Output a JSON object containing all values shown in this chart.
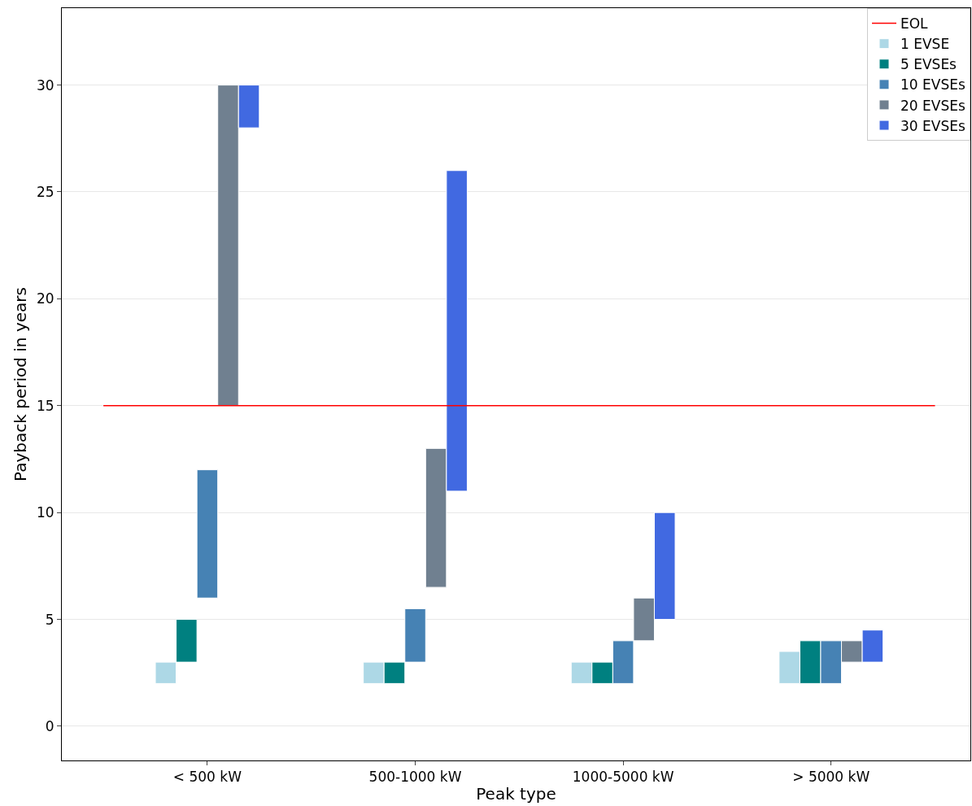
{
  "chart_data": {
    "type": "bar",
    "xlabel": "Peak type",
    "ylabel": "Payback period in years",
    "categories": [
      "< 500 kW",
      "500-1000 kW",
      "1000-5000 kW",
      "> 5000 kW"
    ],
    "series": [
      {
        "name": "1 EVSE",
        "color": "#add8e6",
        "base": [
          2,
          2,
          2,
          2
        ],
        "values": [
          1,
          1,
          1,
          1.5
        ]
      },
      {
        "name": "5 EVSEs",
        "color": "#008080",
        "base": [
          3,
          2,
          2,
          2
        ],
        "values": [
          2,
          1,
          1,
          2
        ]
      },
      {
        "name": "10 EVSEs",
        "color": "#4682b4",
        "base": [
          6,
          3,
          2,
          2
        ],
        "values": [
          6,
          2.5,
          2,
          2
        ]
      },
      {
        "name": "20 EVSEs",
        "color": "#708090",
        "base": [
          15,
          6.5,
          4,
          3
        ],
        "values": [
          15,
          6.5,
          2,
          1
        ]
      },
      {
        "name": "30 EVSEs",
        "color": "#4169e1",
        "base": [
          28,
          11,
          5,
          3
        ],
        "values": [
          2,
          15,
          5,
          1.5
        ]
      }
    ],
    "ref_lines": [
      {
        "axis": "y",
        "value": 15,
        "label": "EOL",
        "color": "#ff0000",
        "line_style": "solid"
      }
    ],
    "ylim": [
      -1.6,
      33.6
    ],
    "yticks": [
      0,
      5,
      10,
      15,
      20,
      25,
      30
    ],
    "grid": "y",
    "legend": "top right"
  }
}
